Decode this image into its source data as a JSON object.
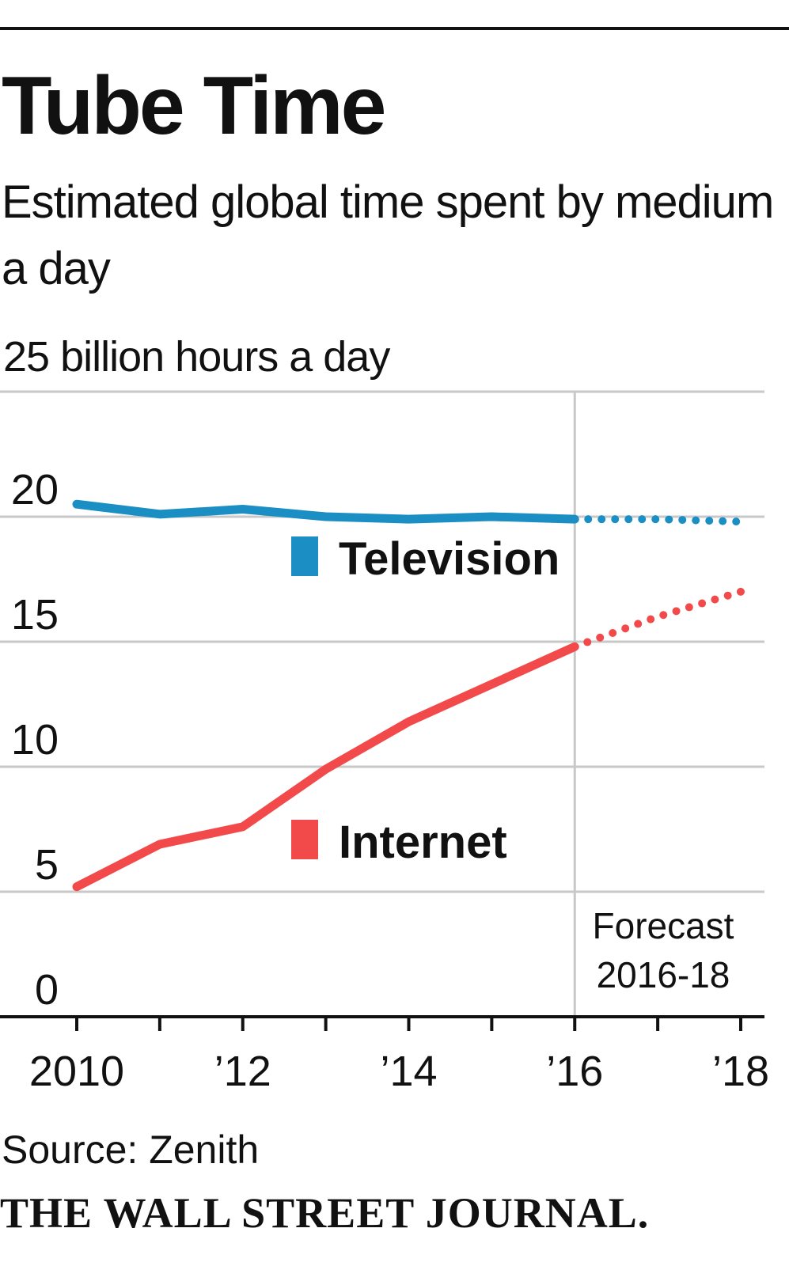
{
  "header": {
    "title": "Tube Time",
    "subtitle": "Estimated global time spent by medium a day"
  },
  "chart_data": {
    "type": "line",
    "ylabel": "25 billion hours a day",
    "ylim": [
      0,
      25
    ],
    "y_ticks": [
      {
        "value": 20,
        "label": "20"
      },
      {
        "value": 15,
        "label": "15"
      },
      {
        "value": 10,
        "label": "10"
      },
      {
        "value": 5,
        "label": "5"
      },
      {
        "value": 0,
        "label": "0"
      }
    ],
    "xlim": [
      2010,
      2018
    ],
    "x_ticks": [
      {
        "value": 2010,
        "label": "2010"
      },
      {
        "value": 2012,
        "label": "’12"
      },
      {
        "value": 2014,
        "label": "’14"
      },
      {
        "value": 2016,
        "label": "’16"
      },
      {
        "value": 2018,
        "label": "’18"
      }
    ],
    "x_minor_ticks": [
      2011,
      2013,
      2015,
      2017
    ],
    "forecast_start": 2016,
    "forecast_label_lines": [
      "Forecast",
      "2016-18"
    ],
    "grid": true,
    "series": [
      {
        "name": "Television",
        "color": "#1b8fc4",
        "x": [
          2010,
          2011,
          2012,
          2013,
          2014,
          2015,
          2016,
          2017,
          2018
        ],
        "values": [
          20.5,
          20.1,
          20.3,
          20.0,
          19.9,
          20.0,
          19.9,
          19.9,
          19.8
        ]
      },
      {
        "name": "Internet",
        "color": "#f24a4a",
        "x": [
          2010,
          2011,
          2012,
          2013,
          2014,
          2015,
          2016,
          2017,
          2018
        ],
        "values": [
          5.2,
          6.9,
          7.6,
          9.9,
          11.8,
          13.3,
          14.8,
          16.0,
          17.0
        ]
      }
    ]
  },
  "footer": {
    "source": "Source: Zenith",
    "brand": "THE WALL STREET JOURNAL."
  }
}
